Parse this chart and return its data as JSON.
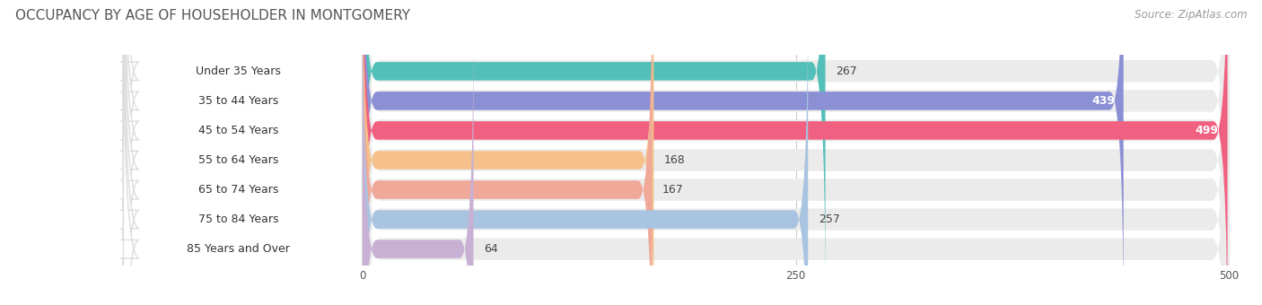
{
  "title": "OCCUPANCY BY AGE OF HOUSEHOLDER IN MONTGOMERY",
  "source": "Source: ZipAtlas.com",
  "categories": [
    "Under 35 Years",
    "35 to 44 Years",
    "45 to 54 Years",
    "55 to 64 Years",
    "65 to 74 Years",
    "75 to 84 Years",
    "85 Years and Over"
  ],
  "values": [
    267,
    439,
    499,
    168,
    167,
    257,
    64
  ],
  "bar_colors": [
    "#52bfb8",
    "#8b8fd4",
    "#f06080",
    "#f5c08a",
    "#f0a898",
    "#a8c4e0",
    "#c8b0d4"
  ],
  "xlim_min": 0,
  "xlim_max": 500,
  "background_color": "#ffffff",
  "bar_bg_color": "#ebebeb",
  "label_bg_color": "#ffffff",
  "tick_labels": [
    "0",
    "250",
    "500"
  ],
  "tick_values": [
    0,
    250,
    500
  ],
  "title_fontsize": 11,
  "source_fontsize": 8.5,
  "label_fontsize": 9,
  "value_fontsize": 9
}
